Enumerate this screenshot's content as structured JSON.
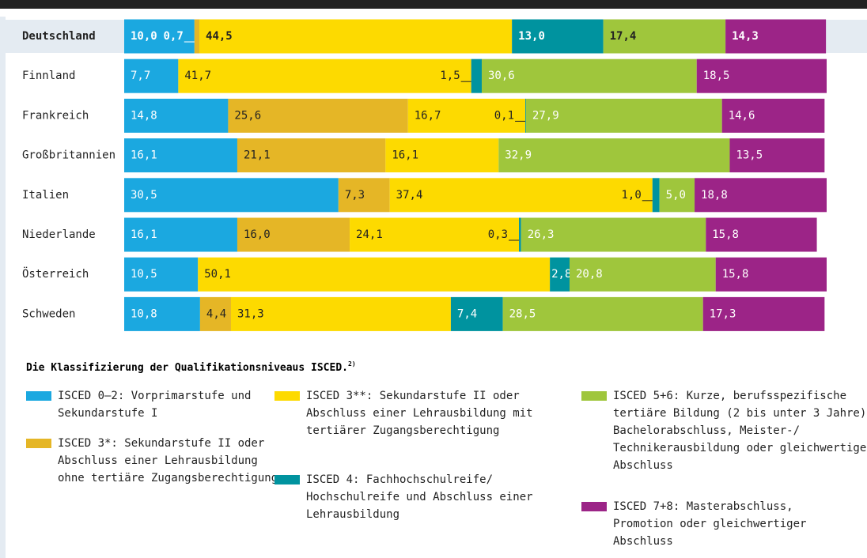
{
  "chart_data": {
    "type": "stacked-bar-horizontal",
    "categories": [
      "Deutschland",
      "Finnland",
      "Frankreich",
      "Großbritannien",
      "Italien",
      "Niederlande",
      "Österreich",
      "Schweden"
    ],
    "xlim": [
      0,
      100
    ],
    "highlight_category": "Deutschland",
    "legend_title": "Die Klassifizierung der Qualifikationsniveaus ISCED.",
    "legend_title_note": "2)",
    "series": [
      {
        "name": "ISCED 0–2: Vorprimarstufe und Sekundarstufe I",
        "color": "#1ba8e0",
        "values": [
          10.0,
          7.7,
          14.8,
          16.1,
          30.5,
          16.1,
          10.5,
          10.8
        ],
        "value_labels": [
          "10,0",
          "7,7",
          "14,8",
          "16,1",
          "30,5",
          "16,1",
          "10,5",
          "10,8"
        ]
      },
      {
        "name": "ISCED 3*: Sekundarstufe II oder Abschluss einer Lehrausbildung ohne tertiäre Zugangsberechtigung",
        "color": "#e5b626",
        "values": [
          0.7,
          null,
          25.6,
          21.1,
          7.3,
          16.0,
          null,
          4.4
        ],
        "value_labels": [
          "0,7",
          null,
          "25,6",
          "21,1",
          "7,3",
          "16,0",
          null,
          "4,4"
        ]
      },
      {
        "name": "ISCED 3**: Sekundarstufe II oder Abschluss einer Lehrausbildung mit tertiärer Zugangsberechtigung",
        "color": "#fdda00",
        "values": [
          44.5,
          41.7,
          16.7,
          16.1,
          37.4,
          24.1,
          50.1,
          31.3
        ],
        "value_labels": [
          "44,5",
          "41,7",
          "16,7",
          "16,1",
          "37,4",
          "24,1",
          "50,1",
          "31,3"
        ]
      },
      {
        "name": "ISCED 4: Fachhochschulreife/ Hochschulreife und Abschluss einer Lehrausbildung",
        "color": "#00939f",
        "values": [
          13.0,
          1.5,
          0.1,
          null,
          1.0,
          0.3,
          2.8,
          7.4
        ],
        "value_labels": [
          "13,0",
          "1,5",
          "0,1",
          null,
          "1,0",
          "0,3",
          "2,8",
          "7,4"
        ]
      },
      {
        "name": "ISCED 5+6: Kurze, berufsspezifische tertiäre Bildung (2 bis unter 3 Jahre), Bachelorabschluss, Meister-/ Technikerausbildung oder gleich­wertiger Abschluss",
        "color": "#9fc63c",
        "values": [
          17.4,
          30.6,
          27.9,
          32.9,
          5.0,
          26.3,
          20.8,
          28.5
        ],
        "value_labels": [
          "17,4",
          "30,6",
          "27,9",
          "32,9",
          "5,0",
          "26,3",
          "20,8",
          "28,5"
        ]
      },
      {
        "name": "ISCED 7+8: Masterabschluss, Promotion oder gleichwertiger Abschluss",
        "color": "#9c2487",
        "values": [
          14.3,
          18.5,
          14.6,
          13.5,
          18.8,
          15.8,
          15.8,
          17.3
        ],
        "value_labels": [
          "14,3",
          "18,5",
          "14,6",
          "13,5",
          "18,8",
          "15,8",
          "15,8",
          "17,3"
        ]
      }
    ]
  }
}
